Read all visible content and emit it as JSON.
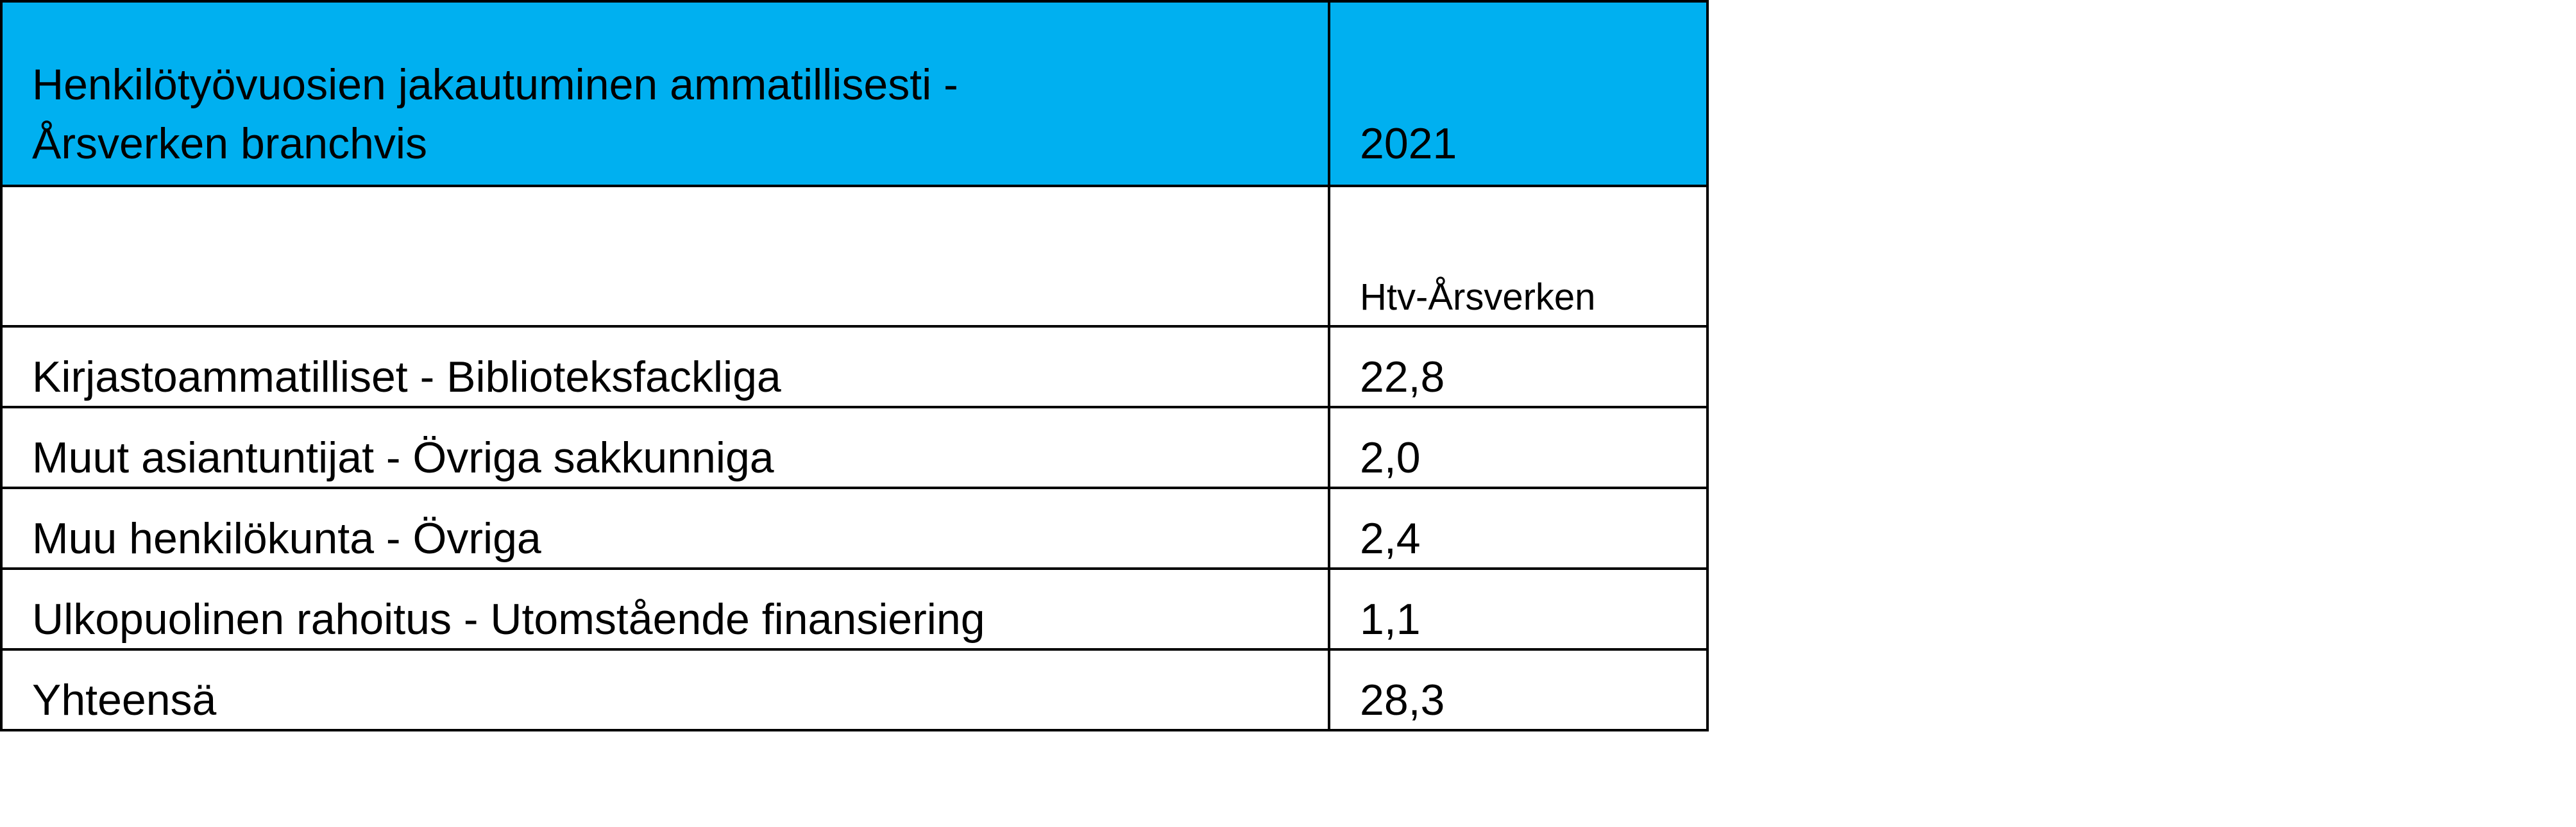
{
  "header": {
    "title_lines": [
      "Henkilötyövuosien jakautuminen ammatillisesti -",
      "Årsverken branchvis"
    ],
    "year": "2021"
  },
  "unit": "Htv-Årsverken",
  "table": {
    "rows": [
      [
        "Kirjastoammatilliset - Biblioteksfackliga",
        "22,8"
      ],
      [
        "Muut asiantuntijat - Övriga sakkunniga",
        "2,0"
      ],
      [
        "Muu henkilökunta - Övriga",
        "2,4"
      ],
      [
        "Ulkopuolinen rahoitus - Utomstående finansiering",
        "1,1"
      ],
      [
        "Yhteensä",
        "28,3"
      ]
    ]
  }
}
